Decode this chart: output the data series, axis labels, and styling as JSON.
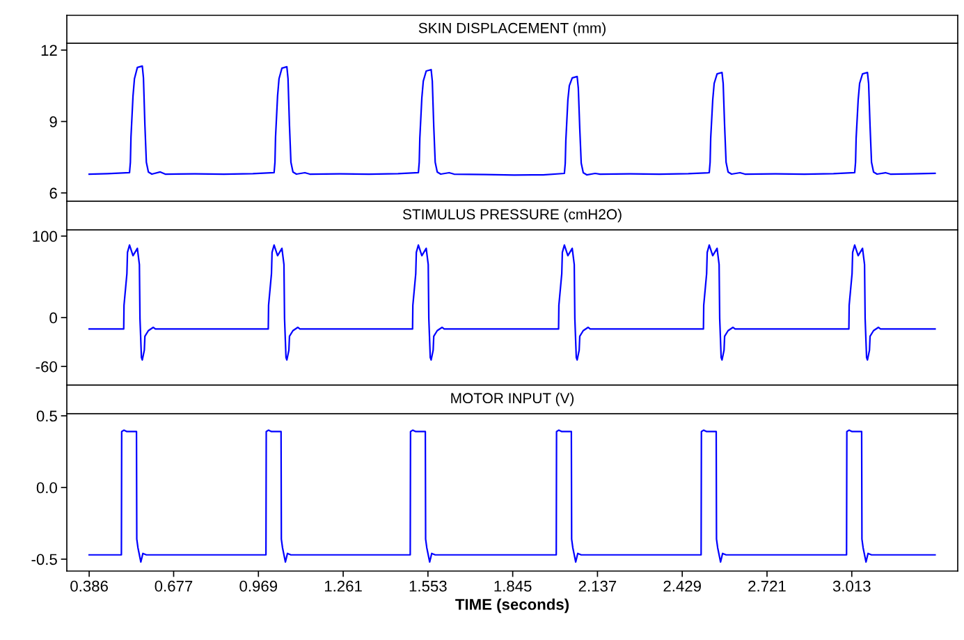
{
  "chart_data": [
    {
      "type": "line",
      "title": "SKIN DISPLACEMENT (mm)",
      "tick_labels": "y",
      "xlim": [
        0.309,
        3.378
      ],
      "ylim": [
        5.65,
        12.29
      ],
      "yticks": [
        6,
        9,
        12
      ],
      "series": [
        {
          "color": "#0000ff",
          "x": [
            0.386,
            0.45,
            0.525,
            0.528,
            0.53,
            0.537,
            0.542,
            0.552,
            0.569,
            0.573,
            0.578,
            0.583,
            0.59,
            0.602,
            0.631,
            0.648,
            0.75,
            0.85,
            0.95,
            1.023,
            1.026,
            1.028,
            1.035,
            1.04,
            1.05,
            1.067,
            1.071,
            1.076,
            1.081,
            1.088,
            1.1,
            1.129,
            1.146,
            1.25,
            1.35,
            1.45,
            1.52,
            1.523,
            1.525,
            1.532,
            1.537,
            1.547,
            1.564,
            1.568,
            1.573,
            1.578,
            1.585,
            1.597,
            1.626,
            1.643,
            1.75,
            1.85,
            1.95,
            2.023,
            2.026,
            2.028,
            2.035,
            2.04,
            2.05,
            2.067,
            2.071,
            2.076,
            2.081,
            2.088,
            2.1,
            2.129,
            2.146,
            2.25,
            2.35,
            2.45,
            2.522,
            2.525,
            2.527,
            2.534,
            2.539,
            2.549,
            2.566,
            2.57,
            2.575,
            2.58,
            2.587,
            2.599,
            2.628,
            2.645,
            2.75,
            2.85,
            2.95,
            3.023,
            3.026,
            3.028,
            3.035,
            3.04,
            3.05,
            3.067,
            3.071,
            3.076,
            3.081,
            3.088,
            3.1,
            3.129,
            3.146,
            3.22,
            3.3
          ],
          "values": [
            6.79,
            6.81,
            6.85,
            7.29,
            8.35,
            10.07,
            10.8,
            11.27,
            11.33,
            10.83,
            8.84,
            7.29,
            6.88,
            6.79,
            6.88,
            6.79,
            6.8,
            6.79,
            6.81,
            6.85,
            7.29,
            8.35,
            10.07,
            10.8,
            11.24,
            11.3,
            10.8,
            8.84,
            7.29,
            6.88,
            6.79,
            6.85,
            6.79,
            6.8,
            6.79,
            6.81,
            6.85,
            7.29,
            8.3,
            10.0,
            10.7,
            11.12,
            11.18,
            10.7,
            8.8,
            7.29,
            6.88,
            6.79,
            6.85,
            6.79,
            6.77,
            6.75,
            6.76,
            6.82,
            7.25,
            8.2,
            9.9,
            10.5,
            10.83,
            10.89,
            10.4,
            8.7,
            7.25,
            6.85,
            6.76,
            6.82,
            6.79,
            6.8,
            6.79,
            6.81,
            6.85,
            7.29,
            8.3,
            9.9,
            10.6,
            11.0,
            11.06,
            10.6,
            8.8,
            7.29,
            6.88,
            6.79,
            6.85,
            6.79,
            6.8,
            6.79,
            6.81,
            6.85,
            7.29,
            8.3,
            9.9,
            10.6,
            11.0,
            11.06,
            10.6,
            8.8,
            7.29,
            6.88,
            6.79,
            6.85,
            6.79,
            6.8,
            6.82
          ]
        }
      ]
    },
    {
      "type": "line",
      "title": "STIMULUS PRESSURE (cmH2O)",
      "tick_labels": "y",
      "xlim": [
        0.309,
        3.378
      ],
      "ylim": [
        -82.9,
        107.7
      ],
      "yticks": [
        -60,
        0,
        100
      ],
      "series": [
        {
          "color": "#0000ff",
          "x": [
            0.386,
            0.505,
            0.506,
            0.516,
            0.518,
            0.525,
            0.537,
            0.552,
            0.559,
            0.561,
            0.566,
            0.569,
            0.576,
            0.578,
            0.59,
            0.607,
            0.614,
            1.003,
            1.004,
            1.014,
            1.016,
            1.023,
            1.035,
            1.05,
            1.057,
            1.059,
            1.064,
            1.067,
            1.074,
            1.076,
            1.088,
            1.105,
            1.112,
            1.5,
            1.501,
            1.511,
            1.513,
            1.52,
            1.532,
            1.547,
            1.554,
            1.556,
            1.561,
            1.564,
            1.571,
            1.573,
            1.585,
            1.602,
            1.609,
            2.003,
            2.004,
            2.014,
            2.016,
            2.023,
            2.035,
            2.05,
            2.057,
            2.059,
            2.064,
            2.067,
            2.074,
            2.076,
            2.088,
            2.105,
            2.112,
            2.502,
            2.503,
            2.513,
            2.515,
            2.522,
            2.534,
            2.549,
            2.556,
            2.558,
            2.563,
            2.566,
            2.573,
            2.575,
            2.587,
            2.604,
            2.611,
            3.003,
            3.004,
            3.014,
            3.016,
            3.023,
            3.035,
            3.05,
            3.057,
            3.059,
            3.064,
            3.067,
            3.074,
            3.076,
            3.088,
            3.105,
            3.112,
            3.3
          ],
          "values": [
            -14,
            -14,
            15,
            54,
            80,
            89,
            76,
            85,
            65,
            -1,
            -49,
            -52,
            -40,
            -23,
            -16,
            -12,
            -14,
            -14,
            15,
            54,
            80,
            89,
            76,
            85,
            65,
            -1,
            -49,
            -52,
            -40,
            -23,
            -16,
            -12,
            -14,
            -14,
            15,
            54,
            80,
            89,
            76,
            85,
            65,
            -1,
            -49,
            -52,
            -40,
            -23,
            -16,
            -12,
            -14,
            -14,
            15,
            54,
            80,
            89,
            76,
            85,
            65,
            -1,
            -49,
            -52,
            -40,
            -23,
            -16,
            -12,
            -14,
            -14,
            15,
            54,
            80,
            89,
            76,
            85,
            65,
            -1,
            -49,
            -52,
            -40,
            -23,
            -16,
            -12,
            -14,
            -14,
            15,
            54,
            80,
            89,
            76,
            85,
            65,
            -1,
            -49,
            -52,
            -40,
            -23,
            -16,
            -12,
            -14,
            -14
          ]
        }
      ]
    },
    {
      "type": "line",
      "title": "MOTOR INPUT (V)",
      "xlabel": "TIME (seconds)",
      "xlim": [
        0.309,
        3.378
      ],
      "ylim": [
        -0.583,
        0.515
      ],
      "xticks": [
        0.386,
        0.677,
        0.969,
        1.261,
        1.553,
        1.845,
        2.137,
        2.429,
        2.721,
        3.013
      ],
      "yticks": [
        {
          "value": -0.5,
          "label": "-0.5"
        },
        {
          "value": 0,
          "label": "0.0"
        },
        0.5
      ],
      "series": [
        {
          "color": "#0000ff",
          "x": [
            0.386,
            0.497,
            0.498,
            0.506,
            0.516,
            0.525,
            0.549,
            0.55,
            0.554,
            0.564,
            0.571,
            0.583,
            0.995,
            0.996,
            1.004,
            1.014,
            1.023,
            1.047,
            1.048,
            1.052,
            1.062,
            1.069,
            1.081,
            1.492,
            1.493,
            1.501,
            1.511,
            1.52,
            1.544,
            1.545,
            1.549,
            1.559,
            1.566,
            1.578,
            1.995,
            1.996,
            2.004,
            2.014,
            2.023,
            2.047,
            2.048,
            2.052,
            2.062,
            2.069,
            2.081,
            2.494,
            2.495,
            2.503,
            2.513,
            2.522,
            2.546,
            2.547,
            2.551,
            2.561,
            2.568,
            2.58,
            2.995,
            2.996,
            3.004,
            3.014,
            3.023,
            3.047,
            3.048,
            3.052,
            3.062,
            3.069,
            3.081,
            3.3
          ],
          "values": [
            -0.47,
            -0.47,
            0.39,
            0.4,
            0.39,
            0.39,
            0.39,
            -0.36,
            -0.42,
            -0.52,
            -0.46,
            -0.47,
            -0.47,
            0.39,
            0.4,
            0.39,
            0.39,
            0.39,
            -0.36,
            -0.42,
            -0.52,
            -0.46,
            -0.47,
            -0.47,
            0.39,
            0.4,
            0.39,
            0.39,
            0.39,
            -0.36,
            -0.42,
            -0.52,
            -0.46,
            -0.47,
            -0.47,
            0.39,
            0.4,
            0.39,
            0.39,
            0.39,
            -0.36,
            -0.42,
            -0.52,
            -0.46,
            -0.47,
            -0.47,
            0.39,
            0.4,
            0.39,
            0.39,
            0.39,
            -0.36,
            -0.42,
            -0.52,
            -0.46,
            -0.47,
            -0.47,
            0.39,
            0.4,
            0.39,
            0.39,
            0.39,
            -0.36,
            -0.42,
            -0.52,
            -0.46,
            -0.47,
            -0.47
          ]
        }
      ]
    }
  ]
}
